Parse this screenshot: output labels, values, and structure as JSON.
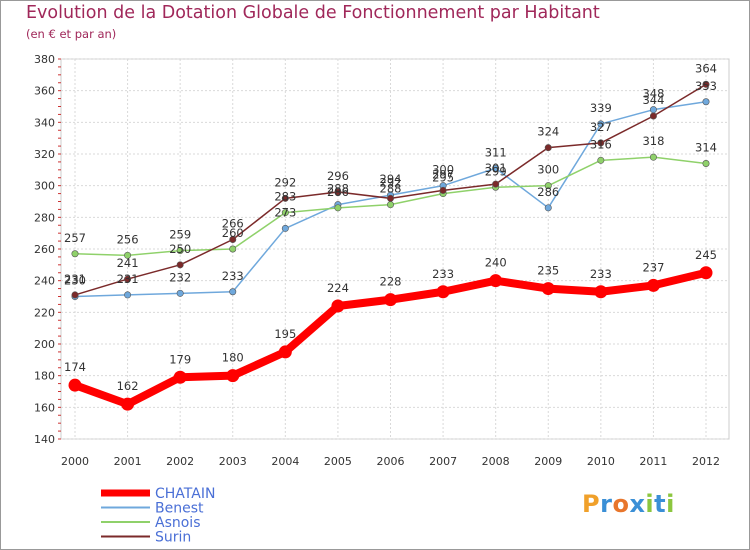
{
  "header": {
    "title": "Evolution de la Dotation Globale de Fonctionnement par Habitant",
    "subtitle": "(en € et par an)"
  },
  "logo": {
    "letters": [
      "P",
      "r",
      "o",
      "x",
      "i",
      "t",
      "i"
    ],
    "colors": [
      "#f0a02a",
      "#3a8fd6",
      "#e8762c",
      "#3a8fd6",
      "#8cc63f",
      "#3a8fd6",
      "#8cc63f"
    ]
  },
  "chart_data": {
    "type": "line",
    "title": "Evolution de la Dotation Globale de Fonctionnement par Habitant",
    "subtitle": "(en € et par an)",
    "xlabel": "",
    "ylabel": "",
    "x": [
      "2000",
      "2001",
      "2002",
      "2003",
      "2004",
      "2005",
      "2006",
      "2007",
      "2008",
      "2009",
      "2010",
      "2011",
      "2012"
    ],
    "ylim": [
      140,
      380
    ],
    "yticks": [
      140,
      160,
      180,
      200,
      220,
      240,
      260,
      280,
      300,
      320,
      340,
      360,
      380
    ],
    "grid": true,
    "legend_position": "bottom-left",
    "series": [
      {
        "name": "CHATAIN",
        "color": "#ff0000",
        "emphasis": true,
        "values": [
          174,
          162,
          179,
          180,
          195,
          224,
          228,
          233,
          240,
          235,
          233,
          237,
          245
        ],
        "labels": [
          "174",
          "162",
          "179",
          "180",
          "195",
          "224",
          "228",
          "233",
          "240",
          "235",
          "233",
          "237",
          "245"
        ]
      },
      {
        "name": "Benest",
        "color": "#6fa8dc",
        "values": [
          230,
          231,
          232,
          233,
          273,
          288,
          294,
          300,
          311,
          286,
          339,
          348,
          353
        ],
        "labels": [
          "230",
          "231",
          "232",
          "233",
          "273",
          "288",
          "294",
          "300",
          "311",
          "286",
          "339",
          "348",
          "353"
        ]
      },
      {
        "name": "Asnois",
        "color": "#8fd16a",
        "values": [
          257,
          256,
          259,
          260,
          283,
          286,
          288,
          295,
          299,
          300,
          316,
          318,
          314
        ],
        "labels": [
          "257",
          "256",
          "259",
          "260",
          "283",
          "286",
          "288",
          "295",
          "299",
          "300",
          "316",
          "318",
          "314"
        ]
      },
      {
        "name": "Surin",
        "color": "#7b2a2a",
        "values": [
          231,
          241,
          250,
          266,
          292,
          296,
          292,
          297,
          301,
          324,
          327,
          344,
          364
        ],
        "labels": [
          "231",
          "241",
          "250",
          "266",
          "292",
          "296",
          "292",
          "297",
          "301",
          "324",
          "327",
          "344",
          "364"
        ]
      }
    ]
  }
}
